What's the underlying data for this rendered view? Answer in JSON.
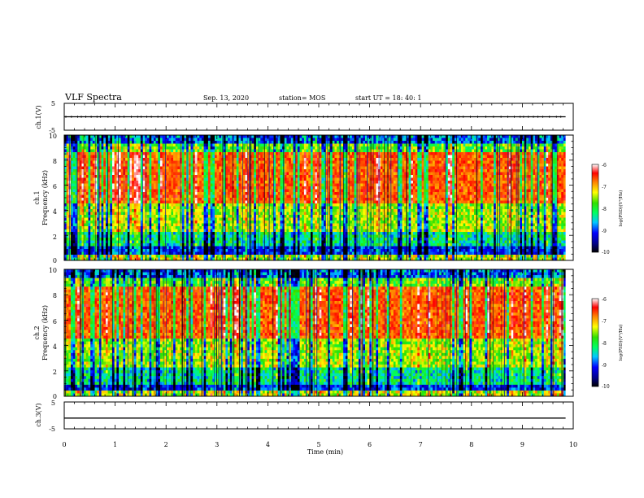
{
  "header": {
    "title": "VLF Spectra",
    "date": "Sep. 13, 2020",
    "station": "station= MOS",
    "start": "start  UT =   18: 40: 1"
  },
  "chart_data": [
    {
      "type": "line",
      "id": "ch1-voltage",
      "ylabel": "ch.1(V)",
      "ylim": [
        -5,
        5
      ],
      "ytick_labels": [
        "-5",
        "5"
      ],
      "xlim": [
        0,
        10
      ],
      "series": [
        {
          "x": [
            0,
            9.85
          ],
          "y": [
            0,
            0
          ]
        }
      ]
    },
    {
      "type": "heatmap",
      "id": "ch1-spectrogram",
      "ylabel": [
        "ch.1",
        "Frequency  (kHz)"
      ],
      "ylim": [
        0,
        10
      ],
      "ytick_labels": [
        "0",
        "2",
        "4",
        "6",
        "8",
        "10"
      ],
      "xlim": [
        0,
        10
      ],
      "data_xmax": 9.85,
      "colorbar": {
        "label": "log(PSD)(V²/Hz)",
        "range": [
          -10,
          -6
        ],
        "ticks": [
          "-6",
          "-7",
          "-8",
          "-9",
          "-10"
        ]
      }
    },
    {
      "type": "heatmap",
      "id": "ch2-spectrogram",
      "ylabel": [
        "ch.2",
        "Frequency  (kHz)"
      ],
      "ylim": [
        0,
        10
      ],
      "ytick_labels": [
        "0",
        "2",
        "4",
        "6",
        "8",
        "10"
      ],
      "xlim": [
        0,
        10
      ],
      "data_xmax": 9.85,
      "colorbar": {
        "label": "log(PSD)(V²/Hz)",
        "range": [
          -10,
          -6
        ],
        "ticks": [
          "-6",
          "-7",
          "-8",
          "-9",
          "-10"
        ]
      }
    },
    {
      "type": "line",
      "id": "ch3-voltage",
      "ylabel": "ch.3(V)",
      "ylim": [
        -5,
        5
      ],
      "ytick_labels": [
        "-5",
        "5"
      ],
      "xlim": [
        0,
        10
      ],
      "series": [
        {
          "x": [
            0,
            9.85
          ],
          "y": [
            -1,
            -1
          ]
        }
      ]
    }
  ],
  "xaxis": {
    "label": "Time  (min)",
    "tick_labels": [
      "0",
      "1",
      "2",
      "3",
      "4",
      "5",
      "6",
      "7",
      "8",
      "9",
      "10"
    ]
  }
}
